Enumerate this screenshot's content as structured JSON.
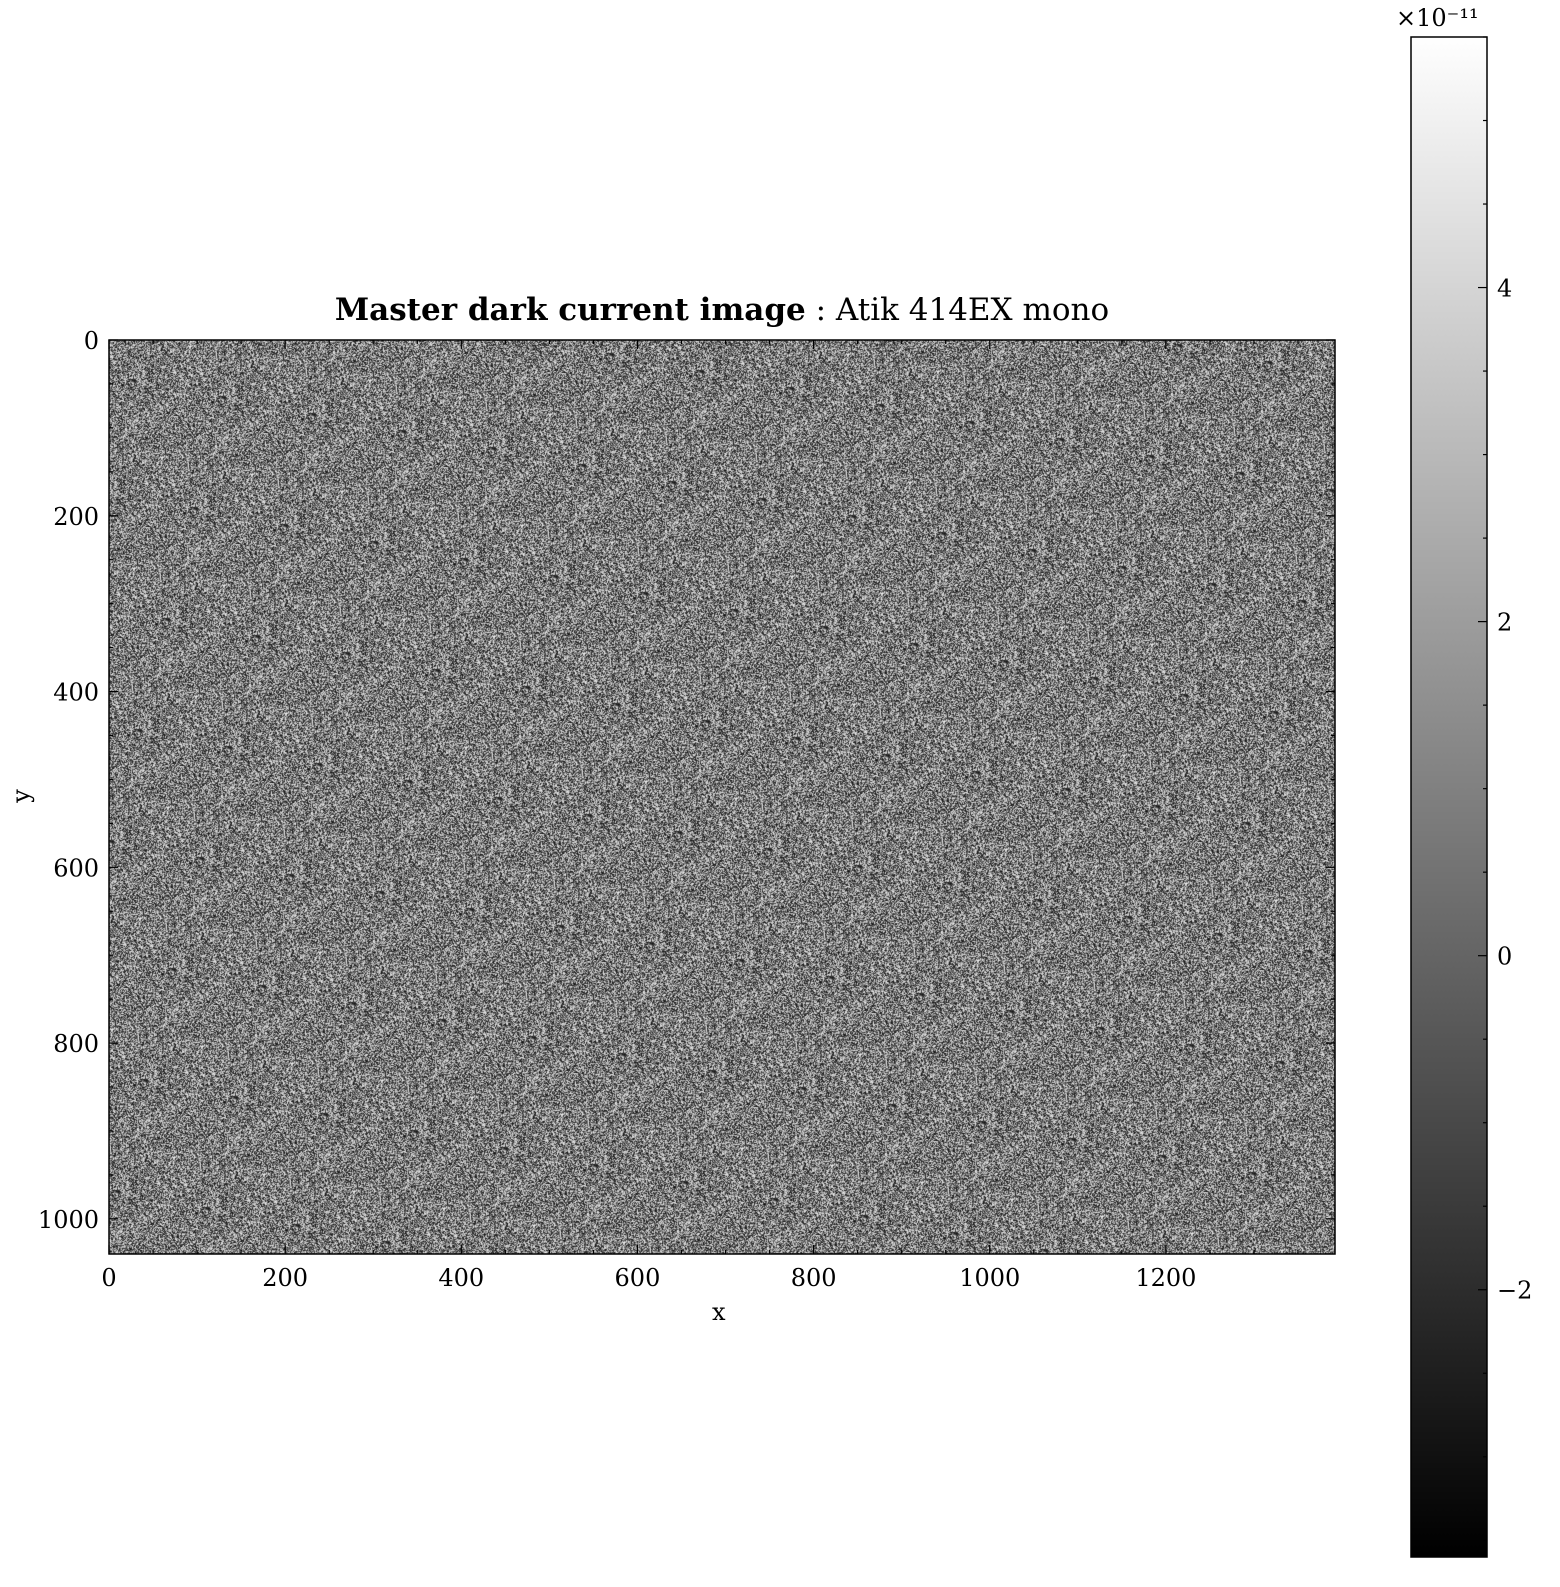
{
  "chart_data": {
    "type": "heatmap",
    "title_bold": "Master dark current image",
    "title_rest": ": Atik 414EX mono",
    "xlabel": "x",
    "ylabel": "y",
    "xlim": [
      0,
      1392
    ],
    "ylim": [
      1040,
      0
    ],
    "x_ticks": [
      "0",
      "200",
      "400",
      "600",
      "800",
      "1000",
      "1200"
    ],
    "x_tick_values": [
      0,
      200,
      400,
      600,
      800,
      1000,
      1200
    ],
    "y_ticks": [
      "0",
      "200",
      "400",
      "600",
      "800",
      "1000"
    ],
    "y_tick_values": [
      0,
      200,
      400,
      600,
      800,
      1000
    ],
    "colormap": "gray",
    "colorbar": {
      "range": [
        -3.6e-11,
        5.5e-11
      ],
      "tick_labels": [
        "−2",
        "0",
        "2",
        "4"
      ],
      "tick_values": [
        -2,
        0,
        2,
        4
      ],
      "offset_label": "×10⁻¹¹"
    },
    "values_description_mean": 0,
    "noise": "uniform random pixel noise"
  }
}
